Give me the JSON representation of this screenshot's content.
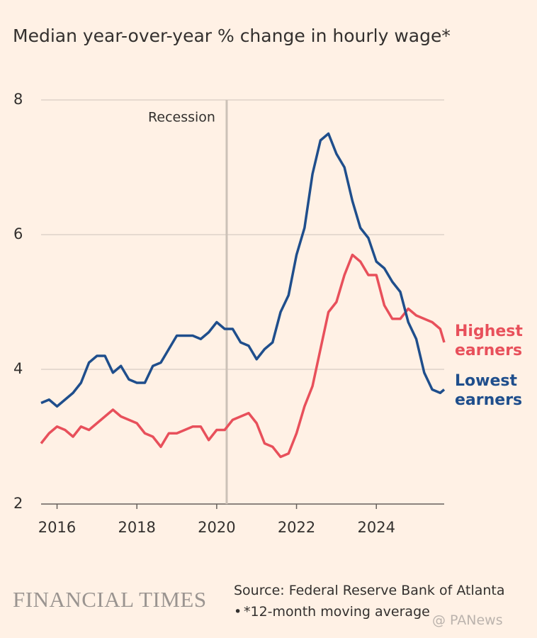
{
  "chart_data": {
    "type": "line",
    "title": "Median year-over-year % change in hourly wage*",
    "annotations": [
      {
        "text": "Recession",
        "x": 2020.25
      }
    ],
    "x": [
      2015.6,
      2015.8,
      2016.0,
      2016.2,
      2016.4,
      2016.6,
      2016.8,
      2017.0,
      2017.2,
      2017.4,
      2017.6,
      2017.8,
      2018.0,
      2018.2,
      2018.4,
      2018.6,
      2018.8,
      2019.0,
      2019.2,
      2019.4,
      2019.6,
      2019.8,
      2020.0,
      2020.2,
      2020.4,
      2020.6,
      2020.8,
      2021.0,
      2021.2,
      2021.4,
      2021.6,
      2021.8,
      2022.0,
      2022.2,
      2022.4,
      2022.6,
      2022.8,
      2023.0,
      2023.2,
      2023.4,
      2023.6,
      2023.8,
      2024.0,
      2024.2,
      2024.4,
      2024.6,
      2024.8,
      2025.0,
      2025.2,
      2025.4,
      2025.6,
      2025.7
    ],
    "series": [
      {
        "name": "Highest earners",
        "color": "#e8505b",
        "values": [
          2.9,
          3.05,
          3.15,
          3.1,
          3.0,
          3.15,
          3.1,
          3.2,
          3.3,
          3.4,
          3.3,
          3.25,
          3.2,
          3.05,
          3.0,
          2.85,
          3.05,
          3.05,
          3.1,
          3.15,
          3.15,
          2.95,
          3.1,
          3.1,
          3.25,
          3.3,
          3.35,
          3.2,
          2.9,
          2.85,
          2.7,
          2.75,
          3.05,
          3.45,
          3.75,
          4.3,
          4.85,
          5.0,
          5.4,
          5.7,
          5.6,
          5.4,
          5.4,
          4.95,
          4.75,
          4.75,
          4.9,
          4.8,
          4.75,
          4.7,
          4.6,
          4.4
        ]
      },
      {
        "name": "Lowest earners",
        "color": "#1f4e8c",
        "values": [
          3.5,
          3.55,
          3.45,
          3.55,
          3.65,
          3.8,
          4.1,
          4.2,
          4.2,
          3.95,
          4.05,
          3.85,
          3.8,
          3.8,
          4.05,
          4.1,
          4.3,
          4.5,
          4.5,
          4.5,
          4.45,
          4.55,
          4.7,
          4.6,
          4.6,
          4.4,
          4.35,
          4.15,
          4.3,
          4.4,
          4.85,
          5.1,
          5.7,
          6.1,
          6.9,
          7.4,
          7.5,
          7.2,
          7.0,
          6.5,
          6.1,
          5.95,
          5.6,
          5.5,
          5.3,
          5.15,
          4.7,
          4.45,
          3.95,
          3.7,
          3.65,
          3.7
        ]
      }
    ],
    "xlim": [
      2015.6,
      2025.7
    ],
    "ylim": [
      2,
      8
    ],
    "xticks": [
      2016,
      2018,
      2020,
      2022,
      2024
    ],
    "yticks": [
      2,
      4,
      6,
      8
    ],
    "grid": true,
    "logo": "FINANCIAL TIMES",
    "source": "Source: Federal Reserve Bank of Atlanta",
    "note": "*12-month moving average",
    "watermark": "@ PANews"
  }
}
